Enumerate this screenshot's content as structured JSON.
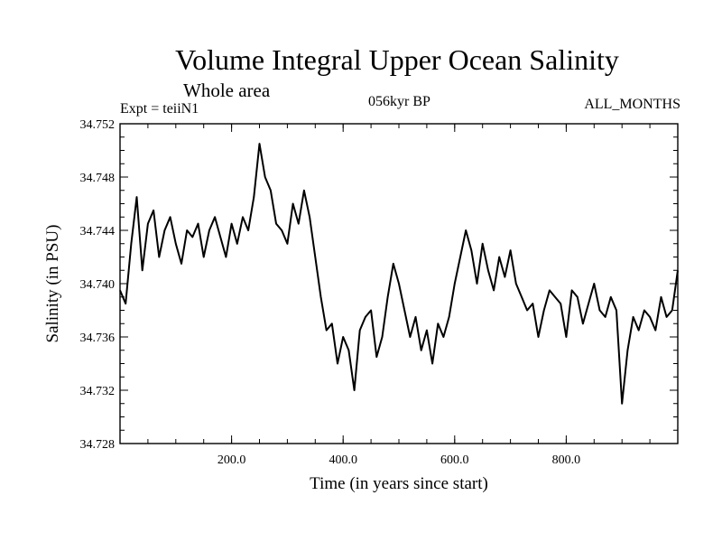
{
  "header": {
    "title": "Volume Integral Upper Ocean Salinity",
    "subtitle": "Whole area",
    "experiment": "Expt = teiiN1",
    "period": "056kyr BP",
    "months": "ALL_MONTHS"
  },
  "chart_data": {
    "type": "line",
    "xlabel": "Time (in years since start)",
    "ylabel": "Salinity (in PSU)",
    "xlim": [
      0,
      1000
    ],
    "ylim": [
      34.728,
      34.752
    ],
    "x_ticks": [
      200,
      400,
      600,
      800
    ],
    "x_tick_labels": [
      "200.0",
      "400.0",
      "600.0",
      "800.0"
    ],
    "y_ticks": [
      34.728,
      34.732,
      34.736,
      34.74,
      34.744,
      34.748,
      34.752
    ],
    "y_tick_labels": [
      "34.728",
      "34.732",
      "34.736",
      "34.740",
      "34.744",
      "34.748",
      "34.752"
    ],
    "grid": false,
    "series": [
      {
        "x": [
          0,
          10,
          20,
          30,
          40,
          50,
          60,
          70,
          80,
          90,
          100,
          110,
          120,
          130,
          140,
          150,
          160,
          170,
          180,
          190,
          200,
          210,
          220,
          230,
          240,
          250,
          260,
          270,
          280,
          290,
          300,
          310,
          320,
          330,
          340,
          350,
          360,
          370,
          380,
          390,
          400,
          410,
          420,
          430,
          440,
          450,
          460,
          470,
          480,
          490,
          500,
          510,
          520,
          530,
          540,
          550,
          560,
          570,
          580,
          590,
          600,
          610,
          620,
          630,
          640,
          650,
          660,
          670,
          680,
          690,
          700,
          710,
          720,
          730,
          740,
          750,
          760,
          770,
          780,
          790,
          800,
          810,
          820,
          830,
          840,
          850,
          860,
          870,
          880,
          890,
          900,
          910,
          920,
          930,
          940,
          950,
          960,
          970,
          980,
          990,
          1000
        ],
        "values": [
          34.7395,
          34.7385,
          34.743,
          34.7465,
          34.741,
          34.7445,
          34.7455,
          34.742,
          34.744,
          34.745,
          34.743,
          34.7415,
          34.744,
          34.7435,
          34.7445,
          34.742,
          34.744,
          34.745,
          34.7435,
          34.742,
          34.7445,
          34.743,
          34.745,
          34.744,
          34.7465,
          34.7505,
          34.748,
          34.747,
          34.7445,
          34.744,
          34.743,
          34.746,
          34.7445,
          34.747,
          34.745,
          34.742,
          34.739,
          34.7365,
          34.737,
          34.734,
          34.736,
          34.735,
          34.732,
          34.7365,
          34.7375,
          34.738,
          34.7345,
          34.736,
          34.739,
          34.7415,
          34.74,
          34.738,
          34.736,
          34.7375,
          34.735,
          34.7365,
          34.734,
          34.737,
          34.736,
          34.7375,
          34.74,
          34.742,
          34.744,
          34.7425,
          34.74,
          34.743,
          34.741,
          34.7395,
          34.742,
          34.7405,
          34.7425,
          34.74,
          34.739,
          34.738,
          34.7385,
          34.736,
          34.738,
          34.7395,
          34.739,
          34.7385,
          34.736,
          34.7395,
          34.739,
          34.737,
          34.7385,
          34.74,
          34.738,
          34.7375,
          34.739,
          34.738,
          34.731,
          34.735,
          34.7375,
          34.7365,
          34.738,
          34.7375,
          34.7365,
          34.739,
          34.7375,
          34.738,
          34.741
        ]
      }
    ]
  }
}
